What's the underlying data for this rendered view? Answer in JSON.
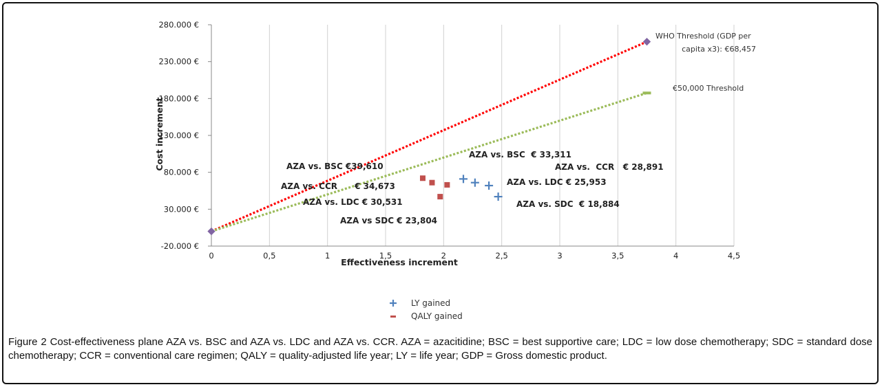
{
  "chart_data": {
    "type": "scatter",
    "xlabel": "Effectiveness increment",
    "ylabel": "Cost increment",
    "xlim": [
      0,
      4.5
    ],
    "ylim": [
      -20000,
      280000
    ],
    "x_ticks": [
      "0",
      "0,5",
      "1",
      "1,5",
      "2",
      "2,5",
      "3",
      "3,5",
      "4",
      "4,5"
    ],
    "x_tick_values": [
      0,
      0.5,
      1,
      1.5,
      2,
      2.5,
      3,
      3.5,
      4,
      4.5
    ],
    "y_ticks": [
      "-20.000 €",
      "30.000 €",
      "80.000 €",
      "130.000 €",
      "180.000 €",
      "230.000 €",
      "280.000 €"
    ],
    "y_tick_values": [
      -20000,
      30000,
      80000,
      130000,
      180000,
      230000,
      280000
    ],
    "grid": "vertical",
    "legend_position": "bottom",
    "series": [
      {
        "name": "LY gained",
        "marker": "plus",
        "color": "#4f81bd",
        "points": [
          {
            "x": 2.17,
            "y": 71000
          },
          {
            "x": 2.27,
            "y": 66000
          },
          {
            "x": 2.39,
            "y": 62000
          },
          {
            "x": 2.47,
            "y": 47000
          }
        ]
      },
      {
        "name": "QALY gained",
        "marker": "square",
        "color": "#c0504d",
        "points": [
          {
            "x": 1.82,
            "y": 72000
          },
          {
            "x": 1.9,
            "y": 66000
          },
          {
            "x": 2.03,
            "y": 63000
          },
          {
            "x": 1.97,
            "y": 47000
          }
        ]
      }
    ],
    "threshold_lines": [
      {
        "label": "WHO Threshold (GDP per capita x3): €68,457",
        "color": "#ff0000",
        "x": [
          0,
          3.75
        ],
        "y": [
          0,
          257000
        ]
      },
      {
        "label": "€50,000 Threshold",
        "color": "#9bbb59",
        "x": [
          0,
          3.75
        ],
        "y": [
          0,
          187500
        ]
      }
    ],
    "threshold_label_lines": [
      [
        "WHO Threshold (GDP per",
        "capita x3): €68,457"
      ],
      [
        "€50,000 Threshold"
      ]
    ],
    "annotations": [
      "AZA vs. BSC €39,610",
      "AZA vs. CCR      € 34,673",
      "AZA vs. LDC € 30,531",
      "AZA vs SDC € 23,804",
      "AZA vs. BSC  € 33,311",
      "AZA vs.  CCR   € 28,891",
      "AZA vs. LDC € 25,953",
      "AZA vs. SDC  € 18,884"
    ]
  },
  "caption": "Figure 2 Cost-effectiveness plane AZA vs. BSC and AZA vs. LDC and AZA vs. CCR. AZA = azacitidine; BSC = best supportive care; LDC = low dose chemotherapy; SDC = standard dose chemotherapy; CCR = conventional care regimen; QALY = quality-adjusted life year; LY = life year; GDP = Gross domestic product."
}
